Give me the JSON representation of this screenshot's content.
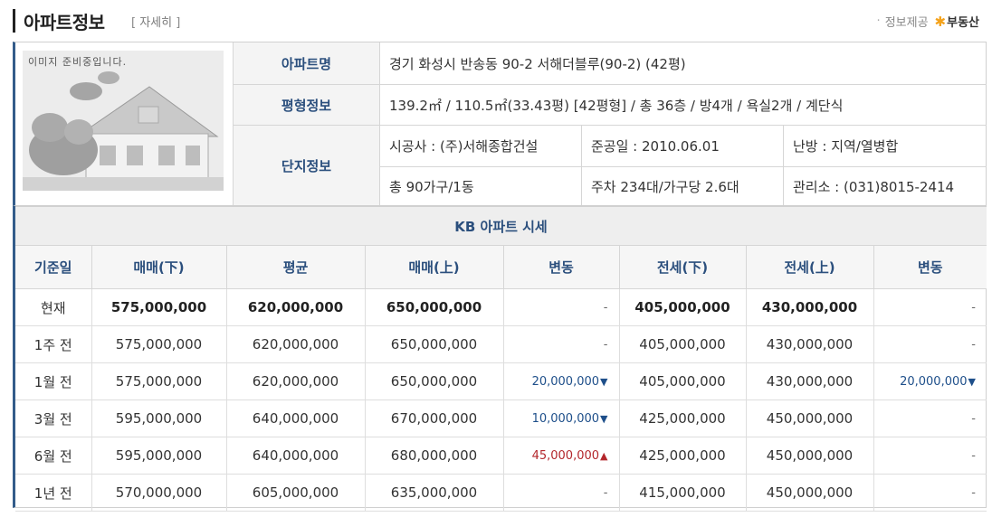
{
  "header": {
    "title": "아파트정보",
    "detail_open": "[",
    "detail_link": "자세히",
    "detail_close": "]",
    "provider_label": "정보제공",
    "provider_logo": "부동산"
  },
  "photo": {
    "notice": "이미지 준비중입니다."
  },
  "info": {
    "name_label": "아파트명",
    "name_value": "경기 화성시 반송동 90-2 서해더블루(90-2) (42평)",
    "size_label": "평형정보",
    "size_value": "139.2㎡ / 110.5㎡(33.43평) [42평형] / 총 36층 / 방4개 / 욕실2개 / 계단식",
    "complex_label": "단지정보",
    "builder": "시공사 : (주)서해종합건설",
    "completed": "준공일 : 2010.06.01",
    "heating": "난방 : 지역/열병합",
    "households": "총 90가구/1동",
    "parking": "주차 234대/가구당 2.6대",
    "office": "관리소 : (031)8015-2414"
  },
  "kb": {
    "title": "KB 아파트 시세",
    "columns": [
      "기준일",
      "매매(下)",
      "평균",
      "매매(上)",
      "변동",
      "전세(下)",
      "전세(上)",
      "변동"
    ],
    "rows": [
      {
        "date": "현재",
        "sale_low": "575,000,000",
        "avg": "620,000,000",
        "sale_high": "650,000,000",
        "sale_chg": "-",
        "sale_dir": "",
        "jeonse_low": "405,000,000",
        "jeonse_high": "430,000,000",
        "jeonse_chg": "-",
        "jeonse_dir": ""
      },
      {
        "date": "1주 전",
        "sale_low": "575,000,000",
        "avg": "620,000,000",
        "sale_high": "650,000,000",
        "sale_chg": "-",
        "sale_dir": "",
        "jeonse_low": "405,000,000",
        "jeonse_high": "430,000,000",
        "jeonse_chg": "-",
        "jeonse_dir": ""
      },
      {
        "date": "1월 전",
        "sale_low": "575,000,000",
        "avg": "620,000,000",
        "sale_high": "650,000,000",
        "sale_chg": "20,000,000",
        "sale_dir": "down",
        "jeonse_low": "405,000,000",
        "jeonse_high": "430,000,000",
        "jeonse_chg": "20,000,000",
        "jeonse_dir": "down"
      },
      {
        "date": "3월 전",
        "sale_low": "595,000,000",
        "avg": "640,000,000",
        "sale_high": "670,000,000",
        "sale_chg": "10,000,000",
        "sale_dir": "down",
        "jeonse_low": "425,000,000",
        "jeonse_high": "450,000,000",
        "jeonse_chg": "-",
        "jeonse_dir": ""
      },
      {
        "date": "6월 전",
        "sale_low": "595,000,000",
        "avg": "640,000,000",
        "sale_high": "680,000,000",
        "sale_chg": "45,000,000",
        "sale_dir": "up",
        "jeonse_low": "425,000,000",
        "jeonse_high": "450,000,000",
        "jeonse_chg": "-",
        "jeonse_dir": ""
      },
      {
        "date": "1년 전",
        "sale_low": "570,000,000",
        "avg": "605,000,000",
        "sale_high": "635,000,000",
        "sale_chg": "-",
        "sale_dir": "",
        "jeonse_low": "415,000,000",
        "jeonse_high": "450,000,000",
        "jeonse_chg": "-",
        "jeonse_dir": ""
      }
    ],
    "arrow_down": "▼",
    "arrow_up": "▲"
  },
  "colors": {
    "accent_blue": "#2b4f7d",
    "decrease": "#1e4f8a",
    "increase": "#b3272c"
  }
}
